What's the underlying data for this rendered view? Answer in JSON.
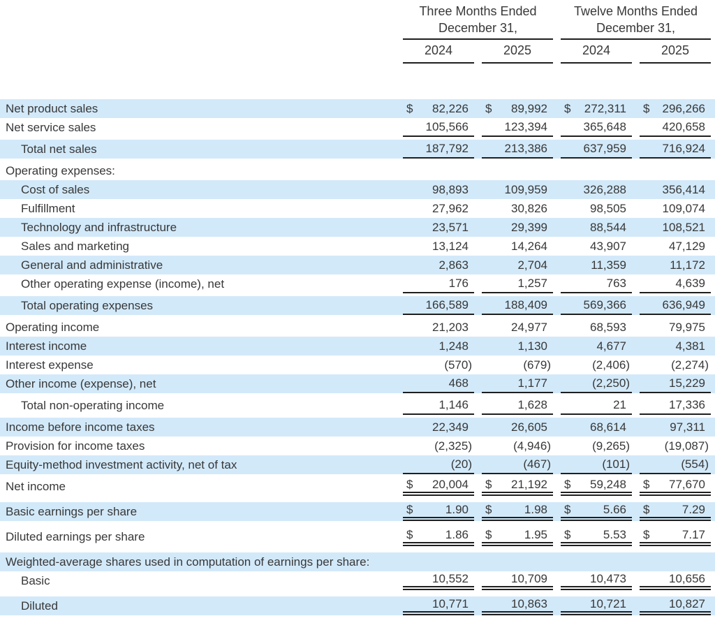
{
  "document_type": "condensed-consolidated-statement-of-operations",
  "colors": {
    "stripe": "#d2e9f9",
    "rule": "#1f1f1f",
    "text": "#383838"
  },
  "table": {
    "column_groups": [
      {
        "title_line1": "Three Months Ended",
        "title_line2": "December 31,",
        "years": [
          "2024",
          "2025"
        ]
      },
      {
        "title_line1": "Twelve Months Ended",
        "title_line2": "December 31,",
        "years": [
          "2024",
          "2025"
        ]
      }
    ],
    "rows": [
      {
        "label": "Net product sales",
        "indent": 0,
        "shaded": true,
        "dollar": true,
        "values": [
          "82,226",
          "89,992",
          "272,311",
          "296,266"
        ],
        "underline": "none"
      },
      {
        "label": "Net service sales",
        "indent": 0,
        "shaded": false,
        "dollar": false,
        "values": [
          "105,566",
          "123,394",
          "365,648",
          "420,658"
        ],
        "underline": "single"
      },
      {
        "label": "Total net sales",
        "indent": 1,
        "shaded": true,
        "dollar": false,
        "values": [
          "187,792",
          "213,386",
          "637,959",
          "716,924"
        ],
        "underline": "single"
      },
      {
        "label": "Operating expenses:",
        "indent": 0,
        "shaded": false,
        "dollar": false,
        "values": [],
        "underline": "none"
      },
      {
        "label": "Cost of sales",
        "indent": 1,
        "shaded": true,
        "dollar": false,
        "values": [
          "98,893",
          "109,959",
          "326,288",
          "356,414"
        ],
        "underline": "none"
      },
      {
        "label": "Fulfillment",
        "indent": 1,
        "shaded": false,
        "dollar": false,
        "values": [
          "27,962",
          "30,826",
          "98,505",
          "109,074"
        ],
        "underline": "none"
      },
      {
        "label": "Technology and infrastructure",
        "indent": 1,
        "shaded": true,
        "dollar": false,
        "values": [
          "23,571",
          "29,399",
          "88,544",
          "108,521"
        ],
        "underline": "none"
      },
      {
        "label": "Sales and marketing",
        "indent": 1,
        "shaded": false,
        "dollar": false,
        "values": [
          "13,124",
          "14,264",
          "43,907",
          "47,129"
        ],
        "underline": "none"
      },
      {
        "label": "General and administrative",
        "indent": 1,
        "shaded": true,
        "dollar": false,
        "values": [
          "2,863",
          "2,704",
          "11,359",
          "11,172"
        ],
        "underline": "none"
      },
      {
        "label": "Other operating expense (income), net",
        "indent": 1,
        "shaded": false,
        "dollar": false,
        "values": [
          "176",
          "1,257",
          "763",
          "4,639"
        ],
        "underline": "single"
      },
      {
        "label": "Total operating expenses",
        "indent": 1,
        "shaded": true,
        "dollar": false,
        "values": [
          "166,589",
          "188,409",
          "569,366",
          "636,949"
        ],
        "underline": "single"
      },
      {
        "label": "Operating income",
        "indent": 0,
        "shaded": false,
        "dollar": false,
        "values": [
          "21,203",
          "24,977",
          "68,593",
          "79,975"
        ],
        "underline": "none"
      },
      {
        "label": "Interest income",
        "indent": 0,
        "shaded": true,
        "dollar": false,
        "values": [
          "1,248",
          "1,130",
          "4,677",
          "4,381"
        ],
        "underline": "none"
      },
      {
        "label": "Interest expense",
        "indent": 0,
        "shaded": false,
        "dollar": false,
        "values": [
          "(570)",
          "(679)",
          "(2,406)",
          "(2,274)"
        ],
        "underline": "none"
      },
      {
        "label": "Other income (expense), net",
        "indent": 0,
        "shaded": true,
        "dollar": false,
        "values": [
          "468",
          "1,177",
          "(2,250)",
          "15,229"
        ],
        "underline": "single"
      },
      {
        "label": "Total non-operating income",
        "indent": 1,
        "shaded": false,
        "dollar": false,
        "values": [
          "1,146",
          "1,628",
          "21",
          "17,336"
        ],
        "underline": "single"
      },
      {
        "label": "Income before income taxes",
        "indent": 0,
        "shaded": true,
        "dollar": false,
        "values": [
          "22,349",
          "26,605",
          "68,614",
          "97,311"
        ],
        "underline": "none"
      },
      {
        "label": "Provision for income taxes",
        "indent": 0,
        "shaded": false,
        "dollar": false,
        "values": [
          "(2,325)",
          "(4,946)",
          "(9,265)",
          "(19,087)"
        ],
        "underline": "none"
      },
      {
        "label": "Equity-method investment activity, net of tax",
        "indent": 0,
        "shaded": true,
        "dollar": false,
        "values": [
          "(20)",
          "(467)",
          "(101)",
          "(554)"
        ],
        "underline": "single"
      },
      {
        "label": "Net income",
        "indent": 0,
        "shaded": false,
        "dollar": true,
        "values": [
          "20,004",
          "21,192",
          "59,248",
          "77,670"
        ],
        "underline": "double"
      },
      {
        "label": "Basic earnings per share",
        "indent": 0,
        "shaded": true,
        "dollar": true,
        "values": [
          "1.90",
          "1.98",
          "5.66",
          "7.29"
        ],
        "underline": "double"
      },
      {
        "label": "Diluted earnings per share",
        "indent": 0,
        "shaded": false,
        "dollar": true,
        "values": [
          "1.86",
          "1.95",
          "5.53",
          "7.17"
        ],
        "underline": "double"
      },
      {
        "label": "Weighted-average shares used in computation of earnings per share:",
        "indent": 0,
        "shaded": true,
        "dollar": false,
        "values": [],
        "underline": "none"
      },
      {
        "label": "Basic",
        "indent": 1,
        "shaded": false,
        "dollar": false,
        "values": [
          "10,552",
          "10,709",
          "10,473",
          "10,656"
        ],
        "underline": "double"
      },
      {
        "label": "Diluted",
        "indent": 1,
        "shaded": true,
        "dollar": false,
        "values": [
          "10,771",
          "10,863",
          "10,721",
          "10,827"
        ],
        "underline": "double"
      }
    ]
  }
}
